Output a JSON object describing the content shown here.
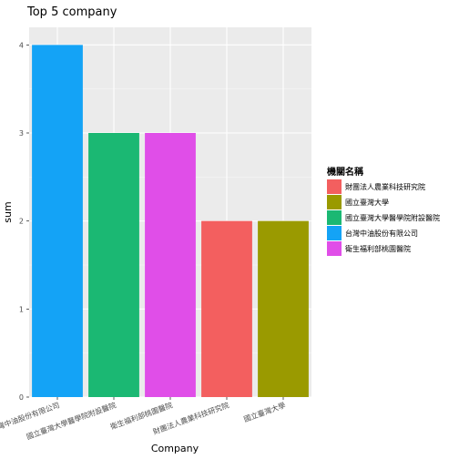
{
  "chart_data": {
    "type": "bar",
    "title": "Top 5 company",
    "xlabel": "Company",
    "ylabel": "sum",
    "ylim": [
      0,
      4.2
    ],
    "yticks": [
      0,
      1,
      2,
      3,
      4
    ],
    "categories": [
      "台灣中油股份有限公司",
      "國立臺灣大學醫學院附設醫院",
      "衛生福利部桃園醫院",
      "財團法人農業科技研究院",
      "國立臺灣大學"
    ],
    "values": [
      4,
      3,
      3,
      2,
      2
    ],
    "bar_colors": [
      "#14A3F6",
      "#1BB873",
      "#E04EE8",
      "#F35F5F",
      "#9A9A00"
    ],
    "grid": true,
    "legend": {
      "title": "機關名稱",
      "placement": "right",
      "entries": [
        {
          "label": "財團法人農業科技研究院",
          "color": "#F35F5F"
        },
        {
          "label": "國立臺灣大學",
          "color": "#9A9A00"
        },
        {
          "label": "國立臺灣大學醫學院附設醫院",
          "color": "#1BB873"
        },
        {
          "label": "台灣中油股份有限公司",
          "color": "#14A3F6"
        },
        {
          "label": "衛生福利部桃園醫院",
          "color": "#E04EE8"
        }
      ]
    }
  }
}
